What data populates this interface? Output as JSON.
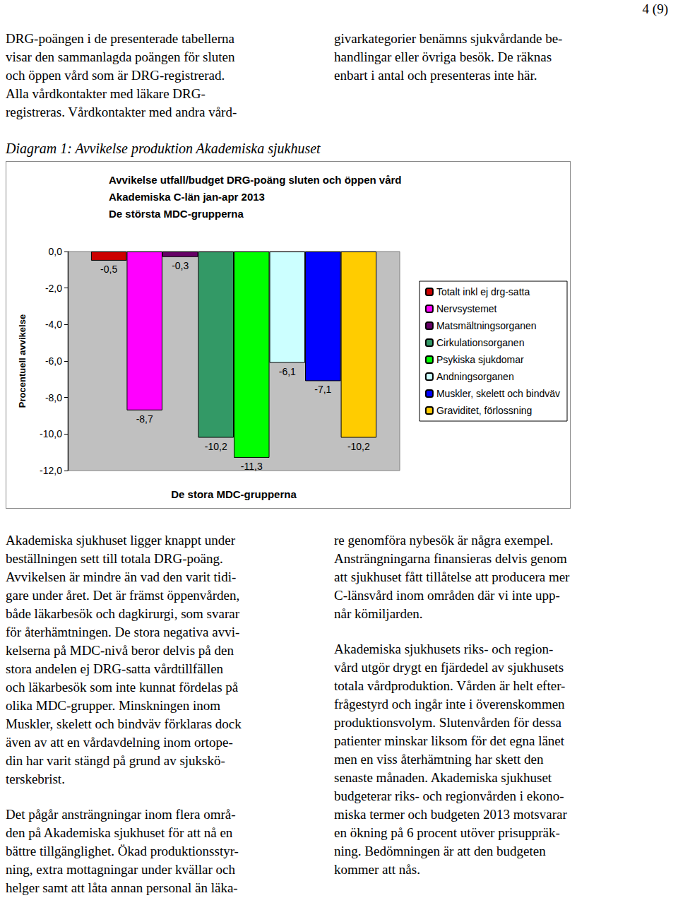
{
  "page_number": "4 (9)",
  "intro": {
    "left": [
      "DRG-poängen i de presenterade tabellerna",
      "visar den sammanlagda poängen för sluten",
      "och öppen vård som är DRG-registrerad.",
      "Alla vårdkontakter med läkare DRG-",
      "registreras. Vårdkontakter med andra vård-"
    ],
    "right": [
      "givarkategorier benämns sjukvårdande be-",
      "handlingar eller övriga besök. De räknas",
      "enbart i antal och presenteras inte här."
    ]
  },
  "caption": "Diagram 1: Avvikelse produktion Akademiska sjukhuset",
  "chart_data": {
    "type": "bar",
    "title": [
      "Avvikelse utfall/budget DRG-poäng sluten och öppen vård",
      "Akademiska C-län jan-apr 2013",
      "De största MDC-grupperna"
    ],
    "x_label": "De stora MDC-grupperna",
    "y_label": "Procentuell avvikelse",
    "categories": [
      null
    ],
    "series": [
      {
        "name": "Totalt inkl ej drg-satta",
        "color": "#cc0000",
        "values": [
          -0.5
        ],
        "value_labels": [
          "-0,5"
        ]
      },
      {
        "name": "Nervsystemet",
        "color": "#ff00ff",
        "values": [
          -8.7
        ],
        "value_labels": [
          "-8,7"
        ]
      },
      {
        "name": "Matsmältningsorganen",
        "color": "#660066",
        "values": [
          -0.3
        ],
        "value_labels": [
          "-0,3"
        ]
      },
      {
        "name": "Cirkulationsorganen",
        "color": "#339966",
        "values": [
          -10.2
        ],
        "value_labels": [
          "-10,2"
        ]
      },
      {
        "name": "Psykiska sjukdomar",
        "color": "#00ff00",
        "values": [
          -11.3
        ],
        "value_labels": [
          "-11,3"
        ]
      },
      {
        "name": "Andningsorganen",
        "color": "#ccffff",
        "values": [
          -6.1
        ],
        "value_labels": [
          "-6,1"
        ]
      },
      {
        "name": "Muskler, skelett och bindväv",
        "color": "#0000ff",
        "values": [
          -7.1
        ],
        "value_labels": [
          "-7,1"
        ]
      },
      {
        "name": "Graviditet, förlossning",
        "color": "#ffcc00",
        "values": [
          -10.2
        ],
        "value_labels": [
          "-10,2"
        ]
      }
    ],
    "ylim": [
      -12,
      0
    ],
    "yticks": [
      {
        "value": -12,
        "label": "-12,0"
      },
      {
        "value": -10,
        "label": "-10,0"
      },
      {
        "value": -8,
        "label": "-8,0"
      },
      {
        "value": -6,
        "label": "-6,0"
      },
      {
        "value": -4,
        "label": "-4,0"
      },
      {
        "value": -2,
        "label": "-2,0"
      },
      {
        "value": 0,
        "label": "0,0"
      }
    ],
    "grid": false,
    "legend": "right",
    "data_labels": true
  },
  "body": {
    "left": [
      [
        "Akademiska sjukhuset ligger knappt under",
        "beställningen sett till totala DRG-poäng.",
        "Avvikelsen är mindre än vad den varit tidi-",
        "gare under året. Det är främst öppenvården,",
        "både läkarbesök och dagkirurgi, som svarar",
        "för återhämtningen. De stora negativa avvi-",
        "kelserna på MDC-nivå beror delvis på den",
        "stora andelen ej DRG-satta vårdtillfällen",
        "och läkarbesök som inte kunnat fördelas på",
        "olika MDC-grupper. Minskningen inom",
        "Muskler, skelett och bindväv förklaras dock",
        "även av att en vårdavdelning inom ortope-",
        "din har varit stängd på grund av sjukskö-",
        "terskebrist."
      ],
      [
        "Det pågår ansträngningar inom flera områ-",
        "den på Akademiska sjukhuset för att nå en",
        "bättre tillgänglighet. Ökad produktionsstyr-",
        "ning, extra mottagningar under kvällar och",
        "helger samt att låta annan personal än läka-"
      ]
    ],
    "right": [
      [
        "re genomföra nybesök är några exempel.",
        "Ansträngningarna finansieras delvis genom",
        "att sjukhuset fått tillåtelse att producera mer",
        "C-länsvård inom områden där vi inte upp-",
        "når kömiljarden."
      ],
      [
        "Akademiska sjukhusets riks- och region-",
        "vård utgör drygt en fjärdedel av sjukhusets",
        "totala vårdproduktion. Vården är helt efter-",
        "frågestyrd och ingår inte i överenskommen",
        "produktionsvolym. Slutenvården för dessa",
        "patienter minskar liksom för det egna länet",
        "men en viss återhämtning har skett den",
        "senaste månaden. Akademiska sjukhuset",
        "budgeterar riks- och regionvården i ekono-",
        "miska termer och budgeten 2013 motsvarar",
        "en ökning på 6 procent utöver prisuppräk-",
        "ning. Bedömningen är att den budgeten",
        "kommer att nås."
      ]
    ]
  }
}
